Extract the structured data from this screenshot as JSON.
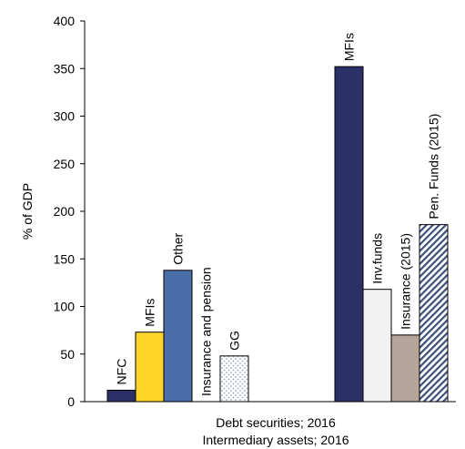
{
  "chart_data": {
    "type": "bar",
    "ylabel": "% of GDP",
    "ylim": [
      0,
      400
    ],
    "yticks": [
      0,
      50,
      100,
      150,
      200,
      250,
      300,
      350,
      400
    ],
    "grid": false,
    "xlabels": [
      "Debt securities; 2016",
      "Intermediary assets; 2016"
    ],
    "groups": [
      {
        "name": "Debt securities; 2016",
        "bars": [
          {
            "label": "NFC",
            "value": 12,
            "fill": "#2b3067",
            "pattern": "solid"
          },
          {
            "label": "MFIs",
            "value": 73,
            "fill": "#ffd52a",
            "pattern": "solid"
          },
          {
            "label": "Other",
            "value": 138,
            "fill": "#4a6ea8",
            "pattern": "solid"
          },
          {
            "label": "Insurance and pension",
            "value": 0,
            "fill": "#ffffff",
            "pattern": "solid"
          },
          {
            "label": "GG",
            "value": 48,
            "fill": "#ffffff",
            "pattern": "dots"
          }
        ]
      },
      {
        "name": "Intermediary assets; 2016",
        "bars": [
          {
            "label": "MFIs",
            "value": 352,
            "fill": "#2b3067",
            "pattern": "solid"
          },
          {
            "label": "Inv.funds",
            "value": 118,
            "fill": "#f2f2f2",
            "pattern": "solid"
          },
          {
            "label": "Insurance (2015)",
            "value": 70,
            "fill": "#b5a59b",
            "pattern": "solid"
          },
          {
            "label": "Pen. Funds (2015)",
            "value": 186,
            "fill": "#ffffff",
            "pattern": "diagonal"
          }
        ]
      }
    ],
    "colors": {
      "navy": "#2b3067",
      "yellow": "#ffd52a",
      "blue": "#4a6ea8",
      "light_grey": "#f2f2f2",
      "taupe": "#b5a59b",
      "dot_pattern": "#9aaac4",
      "hatch_pattern": "#3f4f7a"
    }
  }
}
